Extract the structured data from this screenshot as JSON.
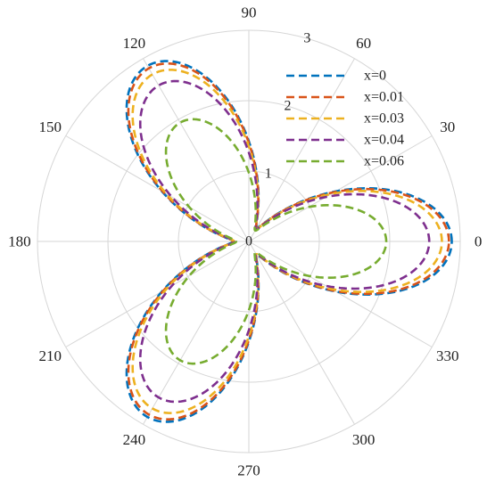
{
  "chart_data": {
    "type": "polar-line",
    "theta_ticks": [
      "0",
      "30",
      "60",
      "90",
      "120",
      "150",
      "180",
      "210",
      "240",
      "270",
      "300",
      "330"
    ],
    "radial_ticks": [
      "0",
      "1",
      "2",
      "3"
    ],
    "rlim": [
      0,
      3
    ],
    "grid": true,
    "legend_position": "top-right",
    "series": [
      {
        "name": "x=0",
        "color": "#0072BD",
        "peak_r": 2.88,
        "valley_r": 0.23
      },
      {
        "name": "x=0.01",
        "color": "#D95319",
        "peak_r": 2.84,
        "valley_r": 0.22
      },
      {
        "name": "x=0.03",
        "color": "#EDB120",
        "peak_r": 2.74,
        "valley_r": 0.21
      },
      {
        "name": "x=0.04",
        "color": "#7E2F8E",
        "peak_r": 2.56,
        "valley_r": 0.2
      },
      {
        "name": "x=0.06",
        "color": "#77AC30",
        "peak_r": 1.95,
        "valley_r": 0.18
      }
    ]
  }
}
